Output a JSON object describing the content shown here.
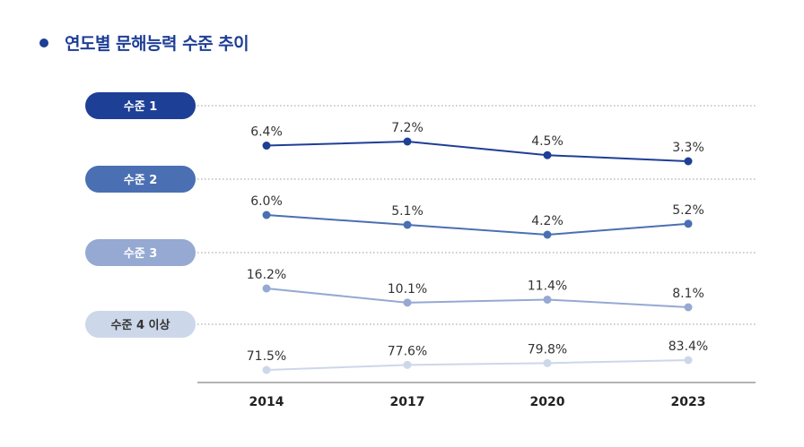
{
  "chart_data": {
    "type": "line",
    "title": "연도별 문해능력 수준 추이",
    "categories": [
      "2014",
      "2017",
      "2020",
      "2023"
    ],
    "unit": "%",
    "series": [
      {
        "name": "수준 1",
        "values": [
          6.4,
          7.2,
          4.5,
          3.3
        ],
        "labels": [
          "6.4%",
          "7.2%",
          "4.5%",
          "3.3%"
        ],
        "color": "#1e3f96",
        "pill_text_color": "#ffffff"
      },
      {
        "name": "수준 2",
        "values": [
          6.0,
          5.1,
          4.2,
          5.2
        ],
        "labels": [
          "6.0%",
          "5.1%",
          "4.2%",
          "5.2%"
        ],
        "color": "#4a6fb3",
        "pill_text_color": "#ffffff"
      },
      {
        "name": "수준 3",
        "values": [
          16.2,
          10.1,
          11.4,
          8.1
        ],
        "labels": [
          "16.2%",
          "10.1%",
          "11.4%",
          "8.1%"
        ],
        "color": "#95a9d2",
        "pill_text_color": "#ffffff"
      },
      {
        "name": "수준 4 이상",
        "values": [
          71.5,
          77.6,
          79.8,
          83.4
        ],
        "labels": [
          "71.5%",
          "77.6%",
          "79.8%",
          "83.4%"
        ],
        "color": "#cdd7ea",
        "pill_text_color": "#333333"
      }
    ],
    "xlabel": "",
    "ylabel": ""
  }
}
